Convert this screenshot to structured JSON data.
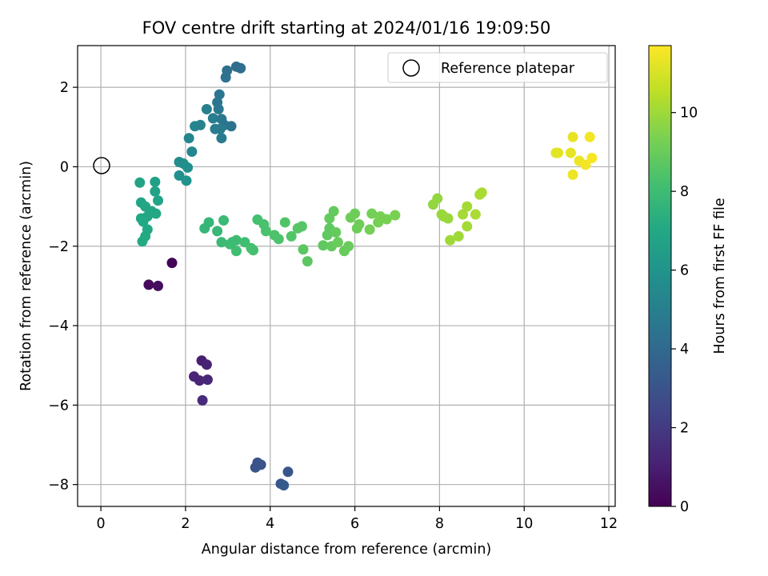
{
  "chart_data": {
    "type": "scatter",
    "title": "FOV centre drift starting at 2024/01/16 19:09:50",
    "xlabel": "Angular distance from reference (arcmin)",
    "ylabel": "Rotation from reference (arcmin)",
    "xlim": [
      -0.55,
      12.15
    ],
    "ylim": [
      -8.55,
      3.05
    ],
    "xticks": [
      0,
      2,
      4,
      6,
      8,
      10,
      12
    ],
    "yticks": [
      2,
      0,
      -2,
      -4,
      -6,
      -8
    ],
    "grid": true,
    "legend": {
      "position": "top-right",
      "entries": [
        "Reference platepar"
      ]
    },
    "reference_point": {
      "x": 0,
      "y": 0
    },
    "colorbar": {
      "label": "Hours from first FF file",
      "range": [
        0,
        11.7
      ],
      "ticks": [
        0,
        2,
        4,
        6,
        8,
        10
      ],
      "colormap": "viridis"
    },
    "points": [
      {
        "x": 1.68,
        "y": -2.42,
        "c": 0.1
      },
      {
        "x": 1.13,
        "y": -2.97,
        "c": 0.3
      },
      {
        "x": 1.35,
        "y": -3.0,
        "c": 0.4
      },
      {
        "x": 2.38,
        "y": -4.88,
        "c": 1.0
      },
      {
        "x": 2.5,
        "y": -4.98,
        "c": 1.1
      },
      {
        "x": 2.2,
        "y": -5.28,
        "c": 1.2
      },
      {
        "x": 2.33,
        "y": -5.38,
        "c": 1.2
      },
      {
        "x": 2.52,
        "y": -5.36,
        "c": 1.3
      },
      {
        "x": 2.4,
        "y": -5.88,
        "c": 1.4
      },
      {
        "x": 3.7,
        "y": -7.45,
        "c": 2.9
      },
      {
        "x": 3.78,
        "y": -7.5,
        "c": 3.0
      },
      {
        "x": 3.65,
        "y": -7.57,
        "c": 3.0
      },
      {
        "x": 4.42,
        "y": -7.68,
        "c": 3.1
      },
      {
        "x": 4.25,
        "y": -7.98,
        "c": 3.2
      },
      {
        "x": 4.32,
        "y": -8.02,
        "c": 3.3
      },
      {
        "x": 2.08,
        "y": 0.72,
        "c": 5.3
      },
      {
        "x": 2.15,
        "y": 0.38,
        "c": 5.4
      },
      {
        "x": 2.22,
        "y": 1.02,
        "c": 5.3
      },
      {
        "x": 2.35,
        "y": 1.05,
        "c": 5.2
      },
      {
        "x": 2.5,
        "y": 1.45,
        "c": 5.0
      },
      {
        "x": 2.65,
        "y": 1.22,
        "c": 4.9
      },
      {
        "x": 2.7,
        "y": 0.95,
        "c": 4.9
      },
      {
        "x": 2.85,
        "y": 0.72,
        "c": 4.8
      },
      {
        "x": 2.78,
        "y": 1.45,
        "c": 4.7
      },
      {
        "x": 2.85,
        "y": 1.2,
        "c": 4.7
      },
      {
        "x": 2.8,
        "y": 1.82,
        "c": 4.6
      },
      {
        "x": 2.92,
        "y": 1.05,
        "c": 4.6
      },
      {
        "x": 3.08,
        "y": 1.02,
        "c": 4.5
      },
      {
        "x": 2.75,
        "y": 1.62,
        "c": 4.6
      },
      {
        "x": 2.95,
        "y": 2.25,
        "c": 4.4
      },
      {
        "x": 2.98,
        "y": 2.42,
        "c": 4.3
      },
      {
        "x": 3.2,
        "y": 2.52,
        "c": 4.2
      },
      {
        "x": 3.3,
        "y": 2.48,
        "c": 4.2
      },
      {
        "x": 2.82,
        "y": 0.95,
        "c": 4.8
      },
      {
        "x": 1.85,
        "y": 0.12,
        "c": 5.7
      },
      {
        "x": 1.95,
        "y": 0.08,
        "c": 5.7
      },
      {
        "x": 2.05,
        "y": -0.02,
        "c": 5.8
      },
      {
        "x": 1.85,
        "y": -0.22,
        "c": 5.8
      },
      {
        "x": 2.02,
        "y": -0.35,
        "c": 5.9
      },
      {
        "x": 0.92,
        "y": -0.4,
        "c": 6.7
      },
      {
        "x": 1.28,
        "y": -0.38,
        "c": 6.6
      },
      {
        "x": 1.28,
        "y": -0.62,
        "c": 6.7
      },
      {
        "x": 0.95,
        "y": -0.9,
        "c": 6.8
      },
      {
        "x": 1.35,
        "y": -0.85,
        "c": 6.8
      },
      {
        "x": 1.05,
        "y": -1.0,
        "c": 6.9
      },
      {
        "x": 1.2,
        "y": -1.12,
        "c": 6.9
      },
      {
        "x": 0.95,
        "y": -1.3,
        "c": 7.0
      },
      {
        "x": 1.1,
        "y": -1.25,
        "c": 6.9
      },
      {
        "x": 1.3,
        "y": -1.18,
        "c": 7.0
      },
      {
        "x": 1.1,
        "y": -1.58,
        "c": 7.0
      },
      {
        "x": 1.05,
        "y": -1.75,
        "c": 7.1
      },
      {
        "x": 0.98,
        "y": -1.88,
        "c": 7.1
      },
      {
        "x": 1.0,
        "y": -1.38,
        "c": 7.0
      },
      {
        "x": 2.45,
        "y": -1.55,
        "c": 7.7
      },
      {
        "x": 2.55,
        "y": -1.4,
        "c": 7.7
      },
      {
        "x": 2.75,
        "y": -1.62,
        "c": 7.8
      },
      {
        "x": 2.85,
        "y": -1.9,
        "c": 7.9
      },
      {
        "x": 2.9,
        "y": -1.35,
        "c": 7.9
      },
      {
        "x": 3.05,
        "y": -1.95,
        "c": 8.0
      },
      {
        "x": 3.2,
        "y": -1.85,
        "c": 8.0
      },
      {
        "x": 3.2,
        "y": -2.12,
        "c": 8.1
      },
      {
        "x": 3.4,
        "y": -1.9,
        "c": 8.1
      },
      {
        "x": 3.55,
        "y": -2.05,
        "c": 8.2
      },
      {
        "x": 3.6,
        "y": -2.1,
        "c": 8.2
      },
      {
        "x": 3.7,
        "y": -1.33,
        "c": 8.2
      },
      {
        "x": 3.85,
        "y": -1.45,
        "c": 8.3
      },
      {
        "x": 3.9,
        "y": -1.62,
        "c": 8.3
      },
      {
        "x": 4.1,
        "y": -1.72,
        "c": 8.4
      },
      {
        "x": 4.2,
        "y": -1.82,
        "c": 8.4
      },
      {
        "x": 4.35,
        "y": -1.4,
        "c": 8.5
      },
      {
        "x": 4.5,
        "y": -1.75,
        "c": 8.5
      },
      {
        "x": 4.65,
        "y": -1.55,
        "c": 8.6
      },
      {
        "x": 4.75,
        "y": -1.5,
        "c": 8.6
      },
      {
        "x": 4.78,
        "y": -2.08,
        "c": 8.7
      },
      {
        "x": 4.88,
        "y": -2.38,
        "c": 8.7
      },
      {
        "x": 5.25,
        "y": -1.98,
        "c": 8.8
      },
      {
        "x": 5.35,
        "y": -1.72,
        "c": 8.8
      },
      {
        "x": 5.4,
        "y": -1.3,
        "c": 8.9
      },
      {
        "x": 5.5,
        "y": -1.12,
        "c": 8.9
      },
      {
        "x": 5.45,
        "y": -2.0,
        "c": 8.9
      },
      {
        "x": 5.6,
        "y": -1.9,
        "c": 9.0
      },
      {
        "x": 5.75,
        "y": -2.12,
        "c": 9.0
      },
      {
        "x": 5.85,
        "y": -2.0,
        "c": 9.0
      },
      {
        "x": 5.9,
        "y": -1.28,
        "c": 9.1
      },
      {
        "x": 6.0,
        "y": -1.18,
        "c": 9.1
      },
      {
        "x": 6.05,
        "y": -1.55,
        "c": 9.1
      },
      {
        "x": 6.35,
        "y": -1.58,
        "c": 9.2
      },
      {
        "x": 6.4,
        "y": -1.18,
        "c": 9.2
      },
      {
        "x": 6.55,
        "y": -1.4,
        "c": 9.2
      },
      {
        "x": 6.6,
        "y": -1.25,
        "c": 9.3
      },
      {
        "x": 6.75,
        "y": -1.32,
        "c": 9.3
      },
      {
        "x": 6.95,
        "y": -1.22,
        "c": 9.3
      },
      {
        "x": 3.1,
        "y": -1.9,
        "c": 8.0
      },
      {
        "x": 5.4,
        "y": -1.55,
        "c": 8.8
      },
      {
        "x": 5.55,
        "y": -1.65,
        "c": 8.9
      },
      {
        "x": 6.1,
        "y": -1.45,
        "c": 9.1
      },
      {
        "x": 7.85,
        "y": -0.95,
        "c": 9.8
      },
      {
        "x": 7.95,
        "y": -0.8,
        "c": 9.8
      },
      {
        "x": 8.05,
        "y": -1.2,
        "c": 9.9
      },
      {
        "x": 8.2,
        "y": -1.3,
        "c": 9.9
      },
      {
        "x": 8.25,
        "y": -1.85,
        "c": 10.0
      },
      {
        "x": 8.45,
        "y": -1.75,
        "c": 10.0
      },
      {
        "x": 8.55,
        "y": -1.2,
        "c": 10.1
      },
      {
        "x": 8.65,
        "y": -1.0,
        "c": 10.1
      },
      {
        "x": 8.65,
        "y": -1.5,
        "c": 10.1
      },
      {
        "x": 8.85,
        "y": -1.2,
        "c": 10.2
      },
      {
        "x": 8.95,
        "y": -0.7,
        "c": 10.2
      },
      {
        "x": 9.0,
        "y": -0.65,
        "c": 10.2
      },
      {
        "x": 8.1,
        "y": -1.25,
        "c": 9.9
      },
      {
        "x": 10.75,
        "y": 0.35,
        "c": 11.2
      },
      {
        "x": 10.8,
        "y": 0.35,
        "c": 11.2
      },
      {
        "x": 11.1,
        "y": 0.35,
        "c": 11.3
      },
      {
        "x": 11.15,
        "y": 0.75,
        "c": 11.3
      },
      {
        "x": 11.15,
        "y": -0.2,
        "c": 11.4
      },
      {
        "x": 11.3,
        "y": 0.15,
        "c": 11.4
      },
      {
        "x": 11.45,
        "y": 0.05,
        "c": 11.5
      },
      {
        "x": 11.55,
        "y": 0.75,
        "c": 11.5
      },
      {
        "x": 11.6,
        "y": 0.22,
        "c": 11.6
      }
    ]
  }
}
